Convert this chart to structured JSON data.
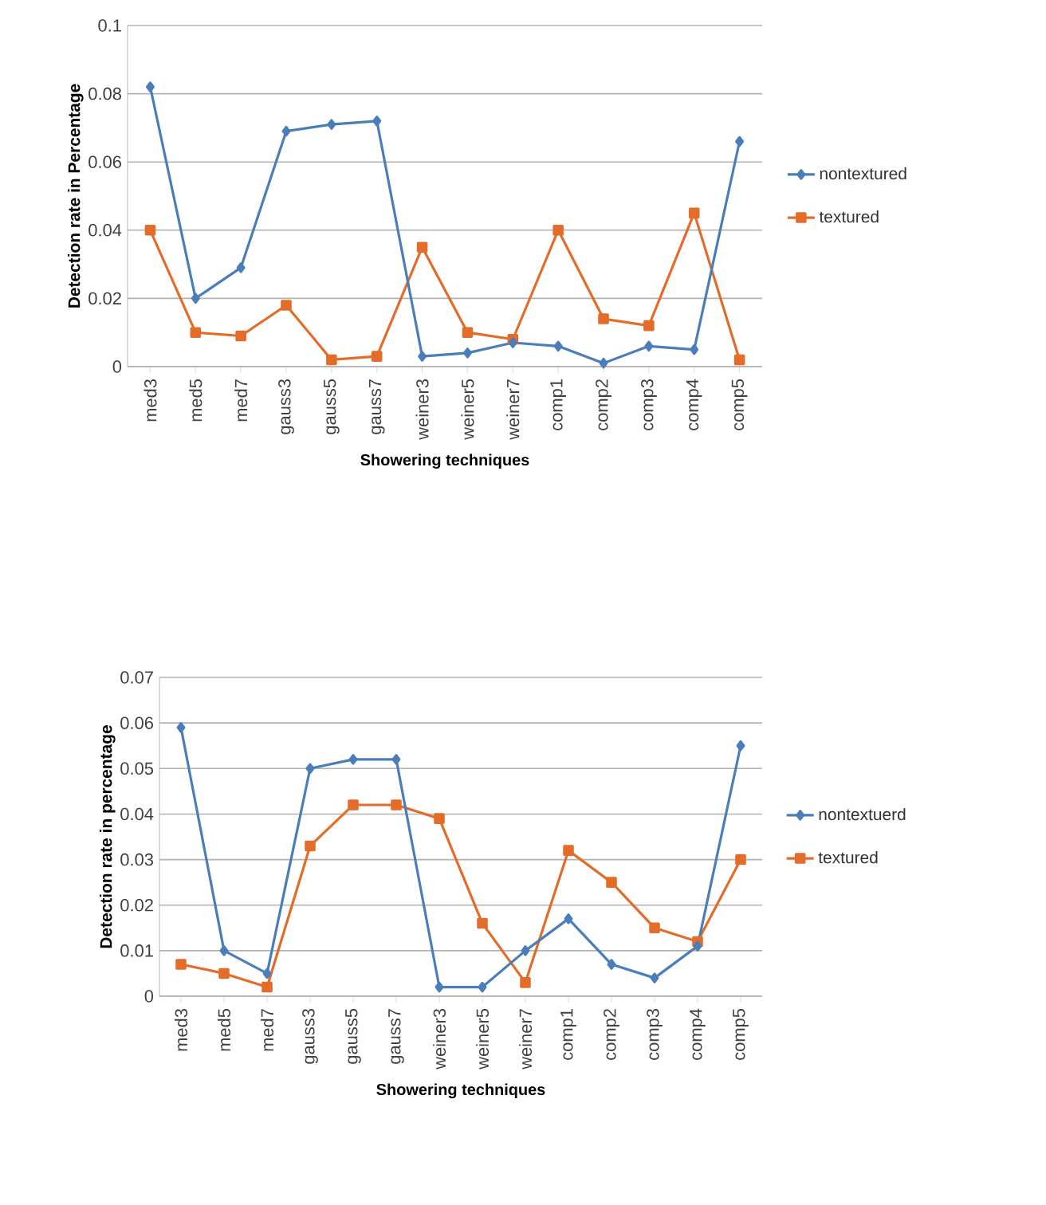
{
  "chart_data": [
    {
      "type": "line",
      "xlabel": "Showering techniques",
      "ylabel": "Detection rate in Percentage",
      "categories": [
        "med3",
        "med5",
        "med7",
        "gauss3",
        "gauss5",
        "gauss7",
        "weiner3",
        "weiner5",
        "weiner7",
        "comp1",
        "comp2",
        "comp3",
        "comp4",
        "comp5"
      ],
      "series": [
        {
          "name": "nontextured",
          "color": "#4a7ebb",
          "marker": "diamond",
          "values": [
            0.082,
            0.02,
            0.029,
            0.069,
            0.071,
            0.072,
            0.003,
            0.004,
            0.007,
            0.006,
            0.001,
            0.006,
            0.005,
            0.066
          ]
        },
        {
          "name": "textured",
          "color": "#e46c29",
          "marker": "square",
          "values": [
            0.04,
            0.01,
            0.009,
            0.018,
            0.002,
            0.003,
            0.035,
            0.01,
            0.008,
            0.04,
            0.014,
            0.012,
            0.045,
            0.002
          ]
        }
      ],
      "ylim": [
        0,
        0.1
      ],
      "yticks": [
        0,
        0.02,
        0.04,
        0.06,
        0.08,
        0.1
      ],
      "grid": "y",
      "legend": "right"
    },
    {
      "type": "line",
      "xlabel": "Showering techniques",
      "ylabel": "Detection rate in percentage",
      "categories": [
        "med3",
        "med5",
        "med7",
        "gauss3",
        "gauss5",
        "gauss7",
        "weiner3",
        "weiner5",
        "weiner7",
        "comp1",
        "comp2",
        "comp3",
        "comp4",
        "comp5"
      ],
      "series": [
        {
          "name": "nontextuerd",
          "color": "#4a7ebb",
          "marker": "diamond",
          "values": [
            0.059,
            0.01,
            0.005,
            0.05,
            0.052,
            0.052,
            0.002,
            0.002,
            0.01,
            0.017,
            0.007,
            0.004,
            0.011,
            0.055
          ]
        },
        {
          "name": "textured",
          "color": "#e46c29",
          "marker": "square",
          "values": [
            0.007,
            0.005,
            0.002,
            0.033,
            0.042,
            0.042,
            0.039,
            0.016,
            0.003,
            0.032,
            0.025,
            0.015,
            0.012,
            0.03
          ]
        }
      ],
      "ylim": [
        0,
        0.07
      ],
      "yticks": [
        0,
        0.01,
        0.02,
        0.03,
        0.04,
        0.05,
        0.06,
        0.07
      ],
      "grid": "y",
      "legend": "right"
    }
  ]
}
